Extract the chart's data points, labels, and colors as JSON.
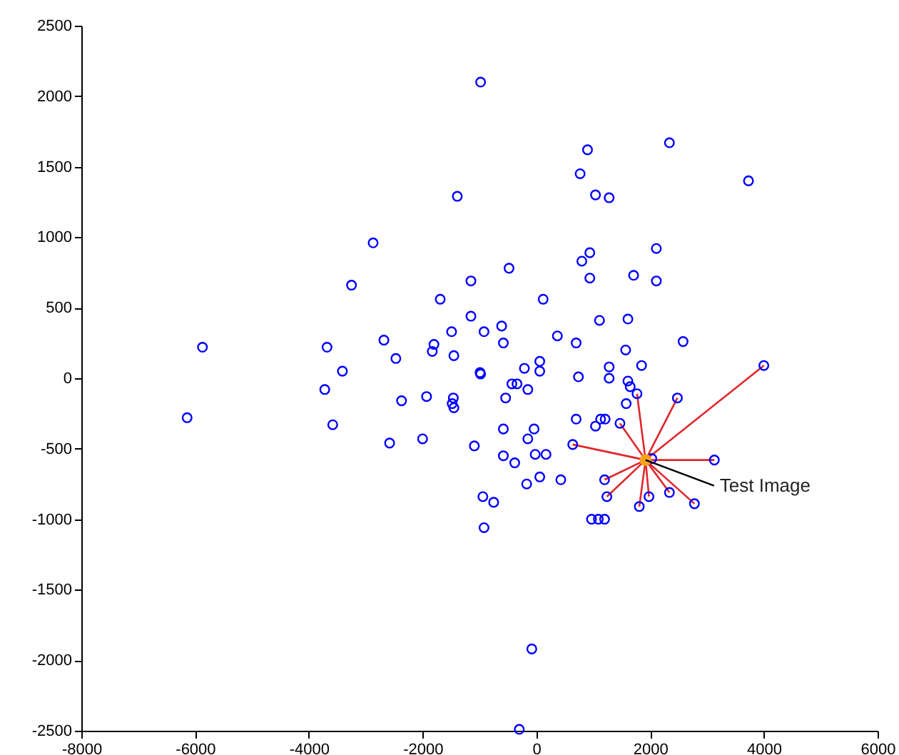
{
  "chart_data": {
    "type": "scatter",
    "grid": false,
    "xlim": [
      -8000,
      6000
    ],
    "ylim": [
      -2500,
      2500
    ],
    "xticks": [
      -8000,
      -6000,
      -4000,
      -2000,
      0,
      2000,
      4000,
      6000
    ],
    "yticks": [
      -2500,
      -2000,
      -1500,
      -1000,
      -500,
      0,
      500,
      1000,
      1500,
      2000,
      2500
    ],
    "series": [
      {
        "marker": "circle",
        "color": "#0000ff",
        "x": [
          -980,
          900,
          2340,
          770,
          1040,
          1280,
          -1390,
          940,
          800,
          2110,
          2110,
          1710,
          940,
          -480,
          -1150,
          -1690,
          120,
          -1150,
          -1490,
          -920,
          -610,
          -580,
          370,
          700,
          1110,
          1610,
          1570,
          1850,
          2580,
          -1800,
          -1830,
          -1450,
          -990,
          -210,
          60,
          60,
          740,
          1280,
          1280,
          1610,
          1650,
          1770,
          -430,
          -340,
          -150,
          -540,
          -1930,
          -1460,
          -1480,
          -1450,
          -980,
          3730,
          -2870,
          -3250,
          -5870,
          -3680,
          -2680,
          -2470,
          -3410,
          -6140,
          -3720,
          -3580,
          -2370,
          -2580,
          -2000,
          -1090,
          -580,
          -40,
          -150,
          -380,
          -580,
          -20,
          170,
          430,
          60,
          -170,
          -750,
          -940,
          -920,
          -80,
          -300,
          970,
          1090,
          1200,
          1240,
          1200,
          700,
          1040,
          1130,
          1210,
          1580,
          1470,
          640,
          2480,
          4000,
          3130,
          2780,
          2340,
          1980,
          1810,
          2030
        ],
        "values": [
          2100,
          1620,
          1670,
          1450,
          1300,
          1280,
          1290,
          890,
          830,
          920,
          690,
          730,
          710,
          780,
          690,
          560,
          560,
          440,
          330,
          330,
          370,
          250,
          300,
          250,
          410,
          420,
          200,
          90,
          260,
          240,
          190,
          160,
          40,
          70,
          120,
          50,
          10,
          80,
          0,
          -20,
          -60,
          -110,
          -40,
          -40,
          -80,
          -140,
          -130,
          -140,
          -180,
          -210,
          30,
          1400,
          960,
          660,
          220,
          220,
          270,
          140,
          50,
          -280,
          -80,
          -330,
          -160,
          -460,
          -430,
          -480,
          -360,
          -360,
          -430,
          -600,
          -550,
          -540,
          -540,
          -720,
          -700,
          -750,
          -880,
          -840,
          -1060,
          -1920,
          -2490,
          -1000,
          -1000,
          -1000,
          -840,
          -720,
          -290,
          -340,
          -290,
          -290,
          -180,
          -320,
          -470,
          -140,
          90,
          -580,
          -890,
          -810,
          -840,
          -910,
          -570
        ]
      },
      {
        "type": "line",
        "color": "#e0262b",
        "x": [
          1920,
          4000
        ],
        "values": [
          -580,
          90
        ]
      },
      {
        "type": "line",
        "color": "#e0262b",
        "x": [
          1920,
          2480
        ],
        "values": [
          -580,
          -140
        ]
      },
      {
        "type": "line",
        "color": "#e0262b",
        "x": [
          1920,
          1770
        ],
        "values": [
          -580,
          -110
        ]
      },
      {
        "type": "line",
        "color": "#e0262b",
        "x": [
          1920,
          1470
        ],
        "values": [
          -580,
          -320
        ]
      },
      {
        "type": "line",
        "color": "#e0262b",
        "x": [
          1920,
          3130
        ],
        "values": [
          -580,
          -580
        ]
      },
      {
        "type": "line",
        "color": "#e0262b",
        "x": [
          1920,
          2780
        ],
        "values": [
          -580,
          -890
        ]
      },
      {
        "type": "line",
        "color": "#e0262b",
        "x": [
          1920,
          2340
        ],
        "values": [
          -580,
          -810
        ]
      },
      {
        "type": "line",
        "color": "#e0262b",
        "x": [
          1920,
          1980
        ],
        "values": [
          -580,
          -840
        ]
      },
      {
        "type": "line",
        "color": "#e0262b",
        "x": [
          1920,
          1810
        ],
        "values": [
          -580,
          -910
        ]
      },
      {
        "type": "line",
        "color": "#e0262b",
        "x": [
          1920,
          1200
        ],
        "values": [
          -580,
          -720
        ]
      },
      {
        "type": "line",
        "color": "#e0262b",
        "x": [
          1920,
          1240
        ],
        "values": [
          -580,
          -840
        ]
      },
      {
        "type": "line",
        "color": "#e0262b",
        "x": [
          1920,
          640
        ],
        "values": [
          -580,
          -470
        ]
      },
      {
        "marker": "circle",
        "color": "#f5a31f",
        "x": [
          1920
        ],
        "values": [
          -580
        ]
      }
    ],
    "annotations": [
      {
        "text": "Test Image",
        "x": 1920,
        "y": -580
      }
    ]
  }
}
